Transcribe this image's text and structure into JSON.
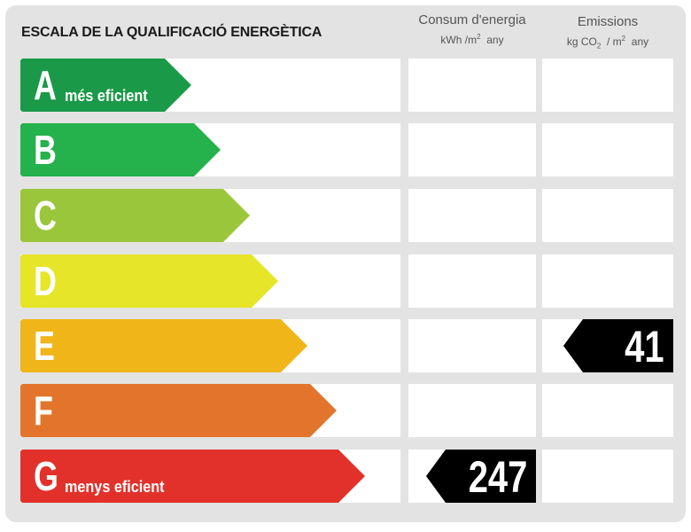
{
  "title": "ESCALA DE LA QUALIFICACIÓ ENERGÈTICA",
  "columns": {
    "energy": {
      "label": "Consum d'energia",
      "unit_main": "kWh /m",
      "unit_sup": "2",
      "unit_tail": "any"
    },
    "emissions": {
      "label": "Emissions",
      "unit_kg": "kg CO",
      "unit_sub": "2",
      "unit_mid": "/ m",
      "unit_sup": "2",
      "unit_tail": "any"
    }
  },
  "classes": [
    {
      "letter": "A",
      "label": "més eficient",
      "color": "#1a9a48"
    },
    {
      "letter": "B",
      "label": "",
      "color": "#25b14b"
    },
    {
      "letter": "C",
      "label": "",
      "color": "#9ac63c"
    },
    {
      "letter": "D",
      "label": "",
      "color": "#e6e528"
    },
    {
      "letter": "E",
      "label": "",
      "color": "#f0b518"
    },
    {
      "letter": "F",
      "label": "",
      "color": "#e2752b"
    },
    {
      "letter": "G",
      "label": "menys eficient",
      "color": "#e2312b"
    }
  ],
  "ratings": {
    "energy": {
      "class": "G",
      "value": "247"
    },
    "emissions": {
      "class": "E",
      "value": "41"
    }
  }
}
